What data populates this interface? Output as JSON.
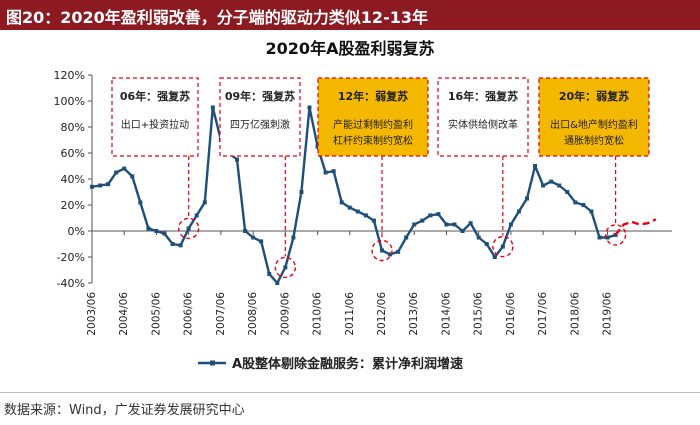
{
  "header": {
    "title": "图20：2020年盈利弱改善，分子端的驱动力类似12-13年"
  },
  "source": "数据来源：Wind，广发证券发展研究中心",
  "colors": {
    "header_bg": "#8e1a21",
    "series": "#1f4e79",
    "forecast": "#e60012",
    "highlight_box": "#f5b800",
    "annotation_border": "#e60012"
  },
  "chart_data": {
    "type": "line",
    "title": "2020年A股盈利弱复苏",
    "xlabel": "",
    "ylabel": "",
    "ylim": [
      -40,
      120
    ],
    "yticks": [
      -40,
      -20,
      0,
      20,
      40,
      60,
      80,
      100,
      120
    ],
    "ytick_labels": [
      "-40%",
      "-20%",
      "0%",
      "20%",
      "40%",
      "60%",
      "80%",
      "100%",
      "120%"
    ],
    "xticks": [
      "2003/06",
      "2004/06",
      "2005/06",
      "2006/06",
      "2007/06",
      "2008/06",
      "2009/06",
      "2010/06",
      "2011/06",
      "2012/06",
      "2013/06",
      "2014/06",
      "2015/06",
      "2016/06",
      "2017/06",
      "2018/06",
      "2019/06"
    ],
    "grid": false,
    "legend": "bottom",
    "series": [
      {
        "name": "A股整体剔除金融服务：累计净利润增速",
        "x": [
          "2003/06",
          "2003/09",
          "2003/12",
          "2004/03",
          "2004/06",
          "2004/09",
          "2004/12",
          "2005/03",
          "2005/06",
          "2005/09",
          "2005/12",
          "2006/03",
          "2006/06",
          "2006/09",
          "2006/12",
          "2007/03",
          "2007/06",
          "2007/09",
          "2007/12",
          "2008/03",
          "2008/06",
          "2008/09",
          "2008/12",
          "2009/03",
          "2009/06",
          "2009/09",
          "2009/12",
          "2010/03",
          "2010/06",
          "2010/09",
          "2010/12",
          "2011/03",
          "2011/06",
          "2011/09",
          "2011/12",
          "2012/03",
          "2012/06",
          "2012/09",
          "2012/12",
          "2013/03",
          "2013/06",
          "2013/09",
          "2013/12",
          "2014/03",
          "2014/06",
          "2014/09",
          "2014/12",
          "2015/03",
          "2015/06",
          "2015/09",
          "2015/12",
          "2016/03",
          "2016/06",
          "2016/09",
          "2016/12",
          "2017/03",
          "2017/06",
          "2017/09",
          "2017/12",
          "2018/03",
          "2018/06",
          "2018/09",
          "2018/12",
          "2019/03",
          "2019/06",
          "2019/09"
        ],
        "values": [
          34,
          35,
          36,
          45,
          48,
          42,
          22,
          2,
          0,
          -2,
          -10,
          -11,
          2,
          12,
          22,
          95,
          70,
          60,
          55,
          0,
          -5,
          -8,
          -33,
          -40,
          -28,
          -5,
          30,
          95,
          65,
          45,
          46,
          22,
          18,
          15,
          12,
          8,
          -15,
          -18,
          -16,
          -5,
          5,
          8,
          12,
          13,
          5,
          5,
          0,
          6,
          -5,
          -10,
          -20,
          -12,
          5,
          15,
          25,
          50,
          35,
          38,
          35,
          30,
          22,
          20,
          15,
          -5,
          -5,
          -3
        ]
      }
    ],
    "forecast": {
      "x": [
        "2019/09",
        "2019/12",
        "2020/03",
        "2020/06",
        "2020/09",
        "2020/12"
      ],
      "values": [
        -3,
        5,
        7,
        5,
        6,
        9
      ]
    },
    "annotations": [
      {
        "title": "06年：强复苏",
        "text": "出口+投资拉动",
        "highlight": false,
        "target": "2006/06"
      },
      {
        "title": "09年：强复苏",
        "text": "四万亿强刺激",
        "highlight": false,
        "target": "2009/06"
      },
      {
        "title": "12年：弱复苏",
        "text": "产能过剩制约盈利 杠杆约束制约宽松",
        "highlight": true,
        "target": "2012/06"
      },
      {
        "title": "16年：强复苏",
        "text": "实体供给侧改革",
        "highlight": false,
        "target": "2016/03"
      },
      {
        "title": "20年：弱复苏",
        "text": "出口&地产制约盈利 通胀制约宽松",
        "highlight": true,
        "target": "2019/09"
      }
    ]
  }
}
